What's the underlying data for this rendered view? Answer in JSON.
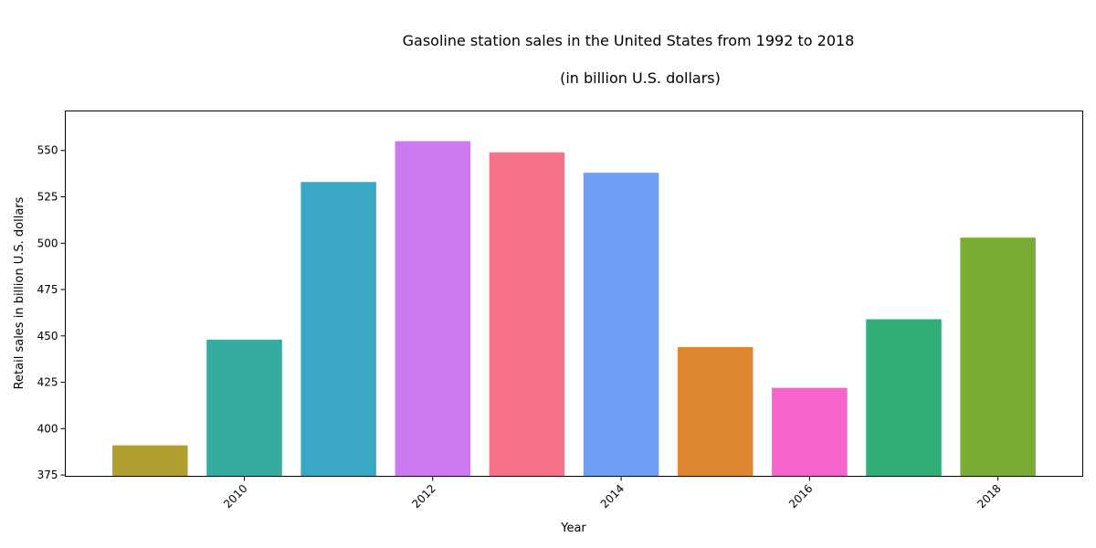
{
  "chart_data": {
    "type": "bar",
    "title": "Gasoline station sales in the United States from 1992 to 2018",
    "subtitle": "(in billion U.S. dollars)",
    "xlabel": "Year",
    "ylabel": "Retail sales in billion U.S. dollars",
    "x": [
      2009,
      2010,
      2011,
      2012,
      2013,
      2014,
      2015,
      2016,
      2017,
      2018
    ],
    "values": [
      391,
      448,
      533,
      555,
      549,
      538,
      444,
      422,
      459,
      503
    ],
    "colors": [
      "#b09e30",
      "#36ab9f",
      "#3aa8c4",
      "#cc79f2",
      "#f57287",
      "#6e9ef5",
      "#df8832",
      "#f665cc",
      "#32af79",
      "#7aac35"
    ],
    "xticks": [
      2010,
      2012,
      2014,
      2016,
      2018
    ],
    "xlim": [
      2008.1,
      2018.9
    ],
    "ylim": [
      374.3,
      571.3
    ],
    "yticks": [
      375,
      400,
      425,
      450,
      475,
      500,
      525,
      550
    ],
    "grid": false,
    "legend": "none"
  }
}
